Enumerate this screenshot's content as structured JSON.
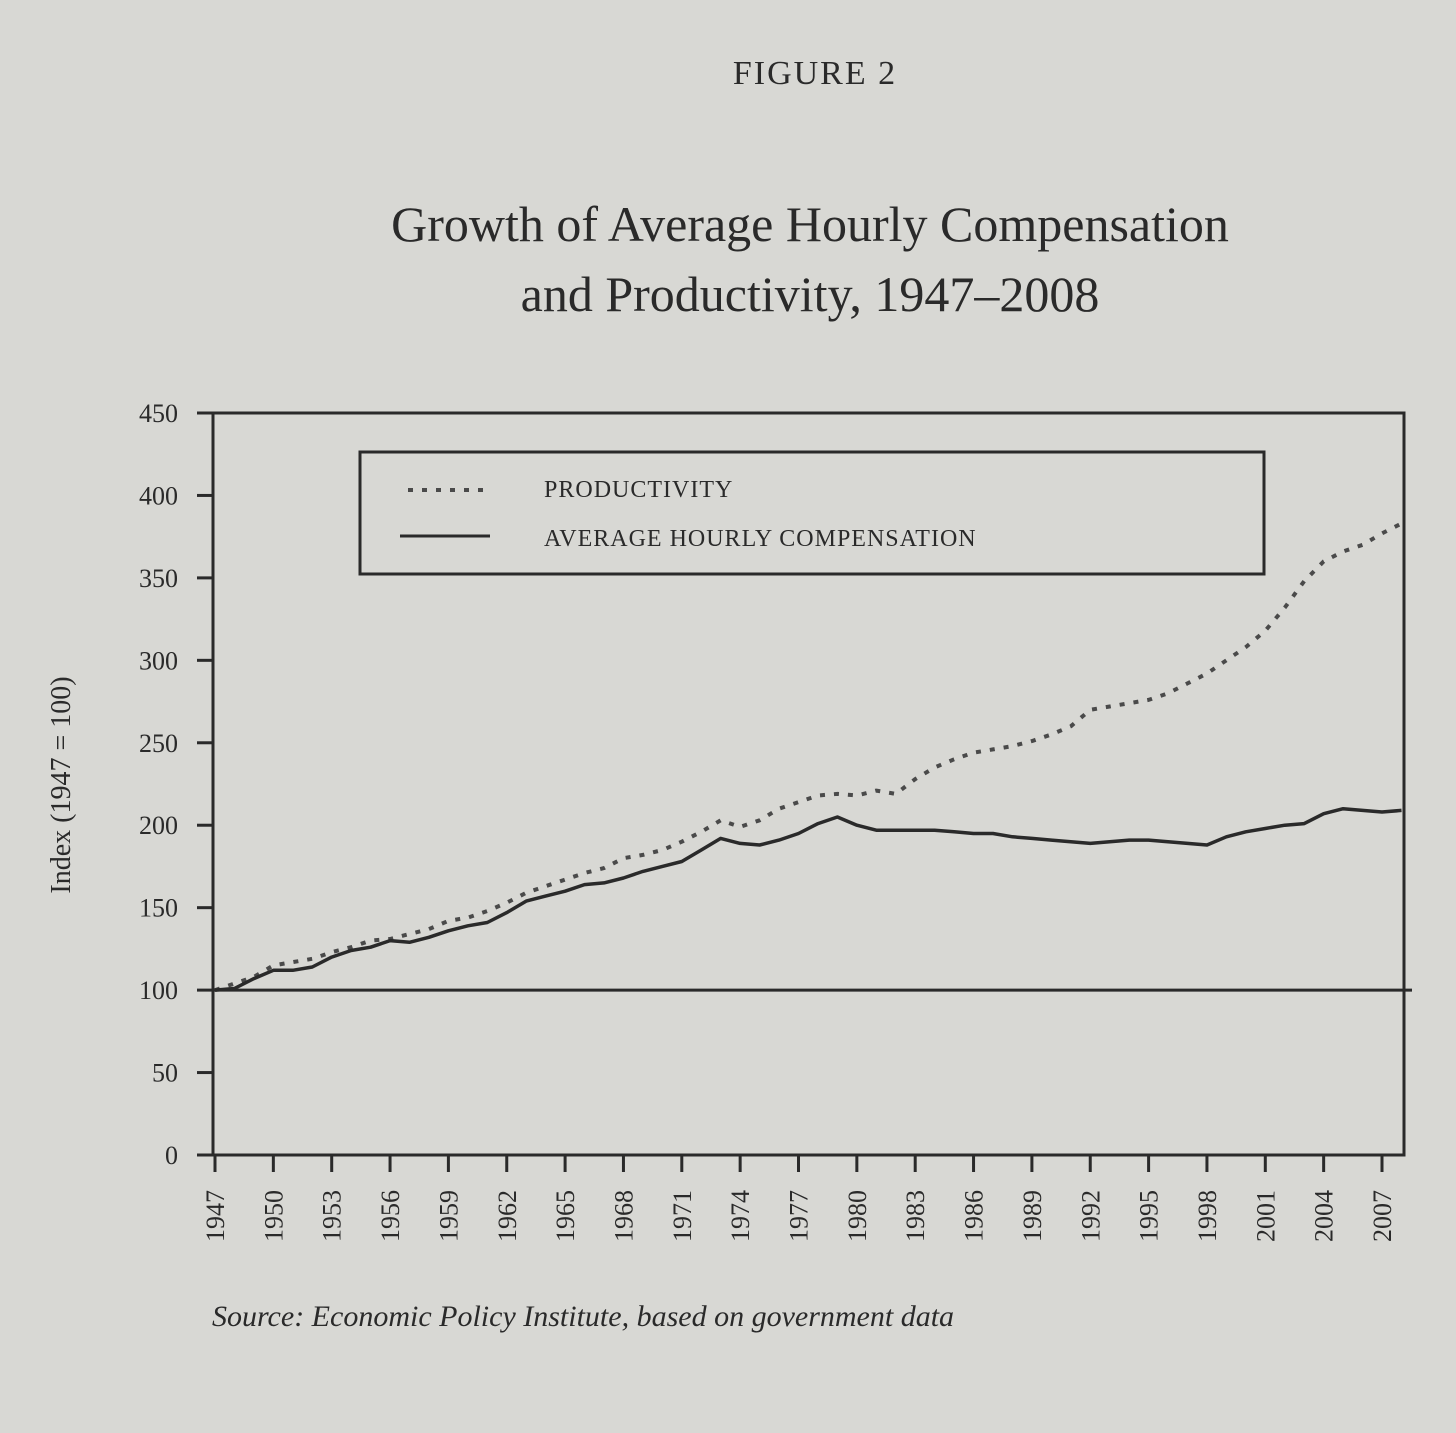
{
  "figure_label": "FIGURE 2",
  "chart_data": {
    "type": "line",
    "title_line1": "Growth of Average Hourly Compensation",
    "title_line2": "and Productivity, 1947–2008",
    "ylabel": "Index (1947 = 100)",
    "xlabel": "",
    "ylim": [
      0,
      450
    ],
    "y_ticks": [
      0,
      50,
      100,
      150,
      200,
      250,
      300,
      350,
      400,
      450
    ],
    "xlim": [
      1947,
      2008
    ],
    "x_tick_labels": [
      1947,
      1950,
      1953,
      1956,
      1959,
      1962,
      1965,
      1968,
      1971,
      1974,
      1977,
      1980,
      1983,
      1986,
      1989,
      1992,
      1995,
      1998,
      2001,
      2004,
      2007
    ],
    "reference_line": 100,
    "grid": false,
    "legend_position": "top",
    "series": [
      {
        "name": "PRODUCTIVITY",
        "style": "dotted",
        "x": [
          1947,
          1948,
          1949,
          1950,
          1951,
          1952,
          1953,
          1954,
          1955,
          1956,
          1957,
          1958,
          1959,
          1960,
          1961,
          1962,
          1963,
          1964,
          1965,
          1966,
          1967,
          1968,
          1969,
          1970,
          1971,
          1972,
          1973,
          1974,
          1975,
          1976,
          1977,
          1978,
          1979,
          1980,
          1981,
          1982,
          1983,
          1984,
          1985,
          1986,
          1987,
          1988,
          1989,
          1990,
          1991,
          1992,
          1993,
          1994,
          1995,
          1996,
          1997,
          1998,
          1999,
          2000,
          2001,
          2002,
          2003,
          2004,
          2005,
          2006,
          2007,
          2008
        ],
        "values": [
          100,
          104,
          108,
          115,
          117,
          119,
          123,
          126,
          130,
          131,
          134,
          137,
          142,
          144,
          148,
          153,
          159,
          163,
          167,
          171,
          174,
          180,
          182,
          185,
          190,
          196,
          203,
          199,
          203,
          210,
          214,
          218,
          219,
          218,
          221,
          219,
          228,
          235,
          240,
          244,
          246,
          248,
          251,
          255,
          260,
          270,
          272,
          274,
          276,
          280,
          286,
          292,
          300,
          308,
          318,
          332,
          348,
          360,
          366,
          370,
          377,
          383
        ]
      },
      {
        "name": "AVERAGE HOURLY COMPENSATION",
        "style": "solid",
        "x": [
          1947,
          1948,
          1949,
          1950,
          1951,
          1952,
          1953,
          1954,
          1955,
          1956,
          1957,
          1958,
          1959,
          1960,
          1961,
          1962,
          1963,
          1964,
          1965,
          1966,
          1967,
          1968,
          1969,
          1970,
          1971,
          1972,
          1973,
          1974,
          1975,
          1976,
          1977,
          1978,
          1979,
          1980,
          1981,
          1982,
          1983,
          1984,
          1985,
          1986,
          1987,
          1988,
          1989,
          1990,
          1991,
          1992,
          1993,
          1994,
          1995,
          1996,
          1997,
          1998,
          1999,
          2000,
          2001,
          2002,
          2003,
          2004,
          2005,
          2006,
          2007,
          2008
        ],
        "values": [
          100,
          101,
          107,
          112,
          112,
          114,
          120,
          124,
          126,
          130,
          129,
          132,
          136,
          139,
          141,
          147,
          154,
          157,
          160,
          164,
          165,
          168,
          172,
          175,
          178,
          185,
          192,
          189,
          188,
          191,
          195,
          201,
          205,
          200,
          197,
          197,
          197,
          197,
          196,
          195,
          195,
          193,
          192,
          191,
          190,
          189,
          190,
          191,
          191,
          190,
          189,
          188,
          193,
          196,
          198,
          200,
          201,
          207,
          210,
          209,
          208,
          209
        ]
      }
    ]
  },
  "source_note": "Source: Economic Policy Institute, based on government data"
}
